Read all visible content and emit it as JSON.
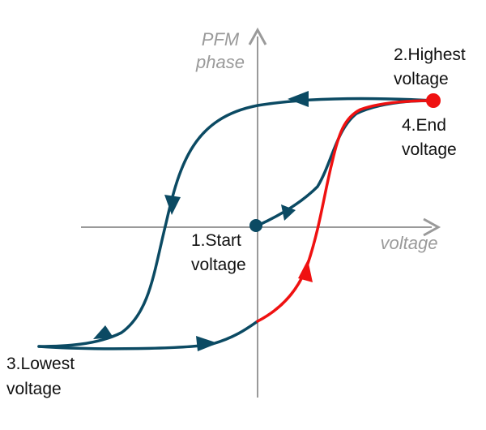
{
  "colors": {
    "axis": "#9a9a9a",
    "loop": "#0b4a63",
    "retrace": "#ef1111",
    "background": "#ffffff"
  },
  "axes": {
    "y_label_line1": "PFM",
    "y_label_line2": "phase",
    "x_label": "voltage"
  },
  "labels": {
    "start": [
      "1.Start",
      "voltage"
    ],
    "highest": [
      "2.Highest",
      "voltage"
    ],
    "lowest": [
      "3.Lowest",
      "voltage"
    ],
    "end": [
      "4.End",
      "voltage"
    ]
  }
}
